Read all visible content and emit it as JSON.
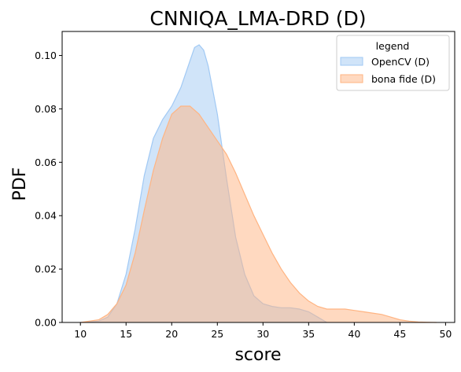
{
  "chart_data": {
    "type": "area",
    "title": "CNNIQA_LMA-DRD (D)",
    "xlabel": "score",
    "ylabel": "PDF",
    "xlim": [
      8.0,
      51.0
    ],
    "ylim": [
      0.0,
      0.109
    ],
    "xticks": [
      "10",
      "15",
      "20",
      "25",
      "30",
      "35",
      "40",
      "45",
      "50"
    ],
    "yticks": [
      "0.00",
      "0.02",
      "0.04",
      "0.06",
      "0.08",
      "0.10"
    ],
    "grid": false,
    "legend": {
      "title": "legend",
      "placement": "top-right"
    },
    "series": [
      {
        "name": "OpenCV (D)",
        "fill": "#a1c9f4",
        "stroke": "#a1c9f4",
        "x": [
          10,
          12,
          13,
          14,
          15,
          16,
          17,
          18,
          19,
          20,
          21,
          22,
          22.5,
          23,
          23.5,
          24,
          25,
          26,
          27,
          28,
          29,
          30,
          31,
          32,
          33,
          34,
          35,
          36,
          37
        ],
        "y": [
          0.0,
          0.0005,
          0.002,
          0.007,
          0.018,
          0.035,
          0.055,
          0.069,
          0.076,
          0.081,
          0.088,
          0.098,
          0.103,
          0.104,
          0.102,
          0.096,
          0.078,
          0.054,
          0.032,
          0.018,
          0.01,
          0.007,
          0.006,
          0.0055,
          0.0055,
          0.005,
          0.004,
          0.002,
          0.0
        ]
      },
      {
        "name": "bona fide (D)",
        "fill": "#ffb482",
        "stroke": "#ffb482",
        "x": [
          10,
          12,
          13,
          14,
          15,
          16,
          17,
          18,
          19,
          20,
          21,
          22,
          23,
          24,
          25,
          26,
          27,
          28,
          29,
          30,
          31,
          32,
          33,
          34,
          35,
          36,
          37,
          38,
          39,
          40,
          41,
          42,
          43,
          44,
          45,
          46,
          47,
          48,
          49
        ],
        "y": [
          0.0,
          0.001,
          0.003,
          0.007,
          0.014,
          0.026,
          0.042,
          0.057,
          0.069,
          0.078,
          0.081,
          0.081,
          0.078,
          0.073,
          0.068,
          0.063,
          0.056,
          0.048,
          0.04,
          0.033,
          0.026,
          0.02,
          0.015,
          0.011,
          0.008,
          0.006,
          0.005,
          0.005,
          0.005,
          0.0045,
          0.004,
          0.0035,
          0.003,
          0.002,
          0.001,
          0.0005,
          0.0002,
          0.0001,
          0.0
        ]
      }
    ]
  }
}
